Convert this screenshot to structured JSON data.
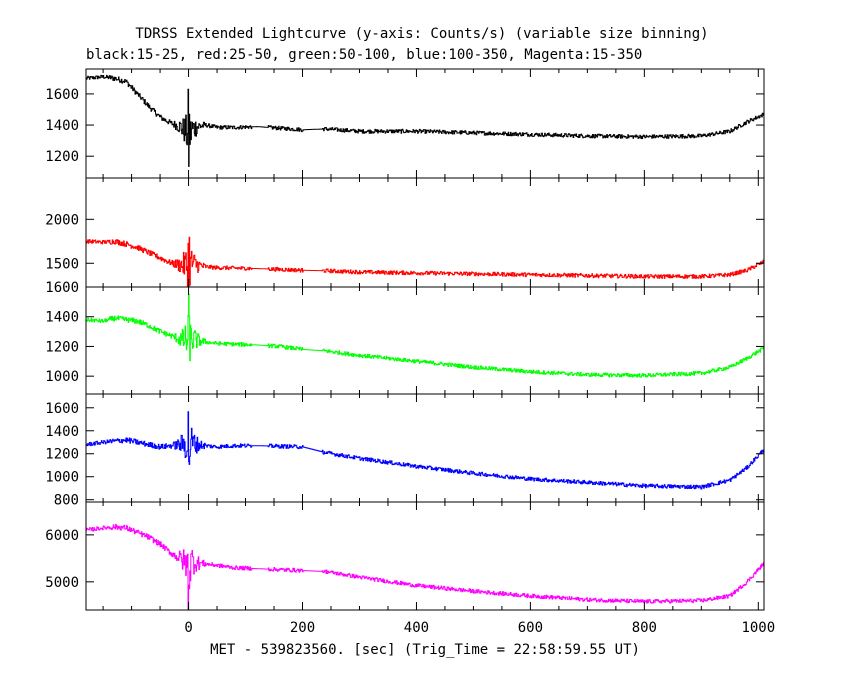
{
  "title": "TDRSS Extended Lightcurve (y-axis: Counts/s) (variable size binning)",
  "subtitle": "black:15-25, red:25-50, green:50-100, blue:100-350, Magenta:15-350",
  "xlabel": "MET - 539823560. [sec] (Trig_Time = 22:58:59.55 UT)",
  "chart_data": {
    "type": "line",
    "title": "TDRSS Extended Lightcurve (y-axis: Counts/s) (variable size binning)",
    "subtitle": "black:15-25, red:25-50, green:50-100, blue:100-350, Magenta:15-350",
    "xlabel": "MET - 539823560. [sec] (Trig_Time = 22:58:59.55 UT)",
    "xlim": [
      -180,
      1010
    ],
    "xticks": [
      0,
      200,
      400,
      600,
      800,
      1000
    ],
    "grid": false,
    "series": [
      {
        "name": "black:15-25",
        "color": "#000000",
        "ylim": [
          1060,
          1760
        ],
        "yticks": [
          1200,
          1400,
          1600
        ],
        "x": [
          -180,
          -150,
          -130,
          -110,
          -90,
          -70,
          -50,
          -30,
          -15,
          -5,
          0,
          5,
          15,
          30,
          50,
          80,
          120,
          160,
          200,
          240,
          300,
          400,
          500,
          600,
          700,
          800,
          900,
          950,
          980,
          1010
        ],
        "y": [
          1700,
          1710,
          1700,
          1680,
          1600,
          1520,
          1450,
          1410,
          1390,
          1360,
          1300,
          1370,
          1390,
          1400,
          1385,
          1385,
          1390,
          1380,
          1370,
          1375,
          1360,
          1360,
          1350,
          1340,
          1330,
          1325,
          1330,
          1360,
          1420,
          1470
        ]
      },
      {
        "name": "red:25-50",
        "color": "#ff0000",
        "ylim": [
          1230,
          2470
        ],
        "yticks": [
          1500,
          2000
        ],
        "x": [
          -180,
          -150,
          -130,
          -110,
          -90,
          -70,
          -50,
          -30,
          -15,
          -5,
          0,
          5,
          15,
          30,
          50,
          80,
          120,
          160,
          200,
          240,
          300,
          400,
          500,
          600,
          700,
          800,
          900,
          950,
          980,
          1010
        ],
        "y": [
          1750,
          1740,
          1750,
          1720,
          1680,
          1620,
          1560,
          1500,
          1480,
          1480,
          1450,
          1500,
          1480,
          1460,
          1450,
          1445,
          1440,
          1430,
          1420,
          1415,
          1400,
          1390,
          1380,
          1370,
          1360,
          1350,
          1350,
          1370,
          1420,
          1520
        ]
      },
      {
        "name": "green:50-100",
        "color": "#00ff00",
        "ylim": [
          880,
          1600
        ],
        "yticks": [
          1000,
          1200,
          1400,
          1600
        ],
        "x": [
          -180,
          -150,
          -130,
          -110,
          -90,
          -70,
          -50,
          -30,
          -15,
          -5,
          0,
          5,
          15,
          30,
          50,
          80,
          120,
          160,
          200,
          240,
          300,
          400,
          500,
          600,
          700,
          800,
          900,
          950,
          980,
          1010
        ],
        "y": [
          1380,
          1370,
          1390,
          1380,
          1370,
          1340,
          1300,
          1270,
          1250,
          1240,
          1220,
          1250,
          1240,
          1230,
          1220,
          1215,
          1210,
          1200,
          1180,
          1170,
          1140,
          1100,
          1060,
          1030,
          1010,
          1005,
          1020,
          1060,
          1120,
          1190
        ]
      },
      {
        "name": "blue:100-350",
        "color": "#0000ff",
        "ylim": [
          780,
          1720
        ],
        "yticks": [
          800,
          1000,
          1200,
          1400,
          1600
        ],
        "x": [
          -180,
          -150,
          -130,
          -110,
          -90,
          -70,
          -50,
          -30,
          -15,
          -5,
          0,
          5,
          15,
          30,
          50,
          80,
          120,
          160,
          200,
          240,
          300,
          400,
          500,
          600,
          700,
          800,
          900,
          950,
          980,
          1010
        ],
        "y": [
          1280,
          1300,
          1310,
          1320,
          1300,
          1280,
          1260,
          1270,
          1280,
          1290,
          1250,
          1300,
          1280,
          1270,
          1260,
          1270,
          1270,
          1265,
          1260,
          1210,
          1160,
          1090,
          1030,
          980,
          950,
          920,
          910,
          970,
          1080,
          1240
        ]
      },
      {
        "name": "Magenta:15-350",
        "color": "#ff00ff",
        "ylim": [
          4400,
          6700
        ],
        "yticks": [
          5000,
          6000
        ],
        "x": [
          -180,
          -150,
          -130,
          -110,
          -90,
          -70,
          -50,
          -30,
          -15,
          -5,
          0,
          5,
          15,
          30,
          50,
          80,
          120,
          160,
          200,
          240,
          300,
          400,
          500,
          600,
          700,
          800,
          900,
          950,
          980,
          1010
        ],
        "y": [
          6100,
          6150,
          6170,
          6150,
          6050,
          5950,
          5800,
          5600,
          5500,
          5400,
          5200,
          5450,
          5400,
          5380,
          5350,
          5300,
          5280,
          5260,
          5240,
          5220,
          5100,
          4920,
          4800,
          4700,
          4620,
          4580,
          4600,
          4700,
          5000,
          5400
        ]
      }
    ]
  }
}
